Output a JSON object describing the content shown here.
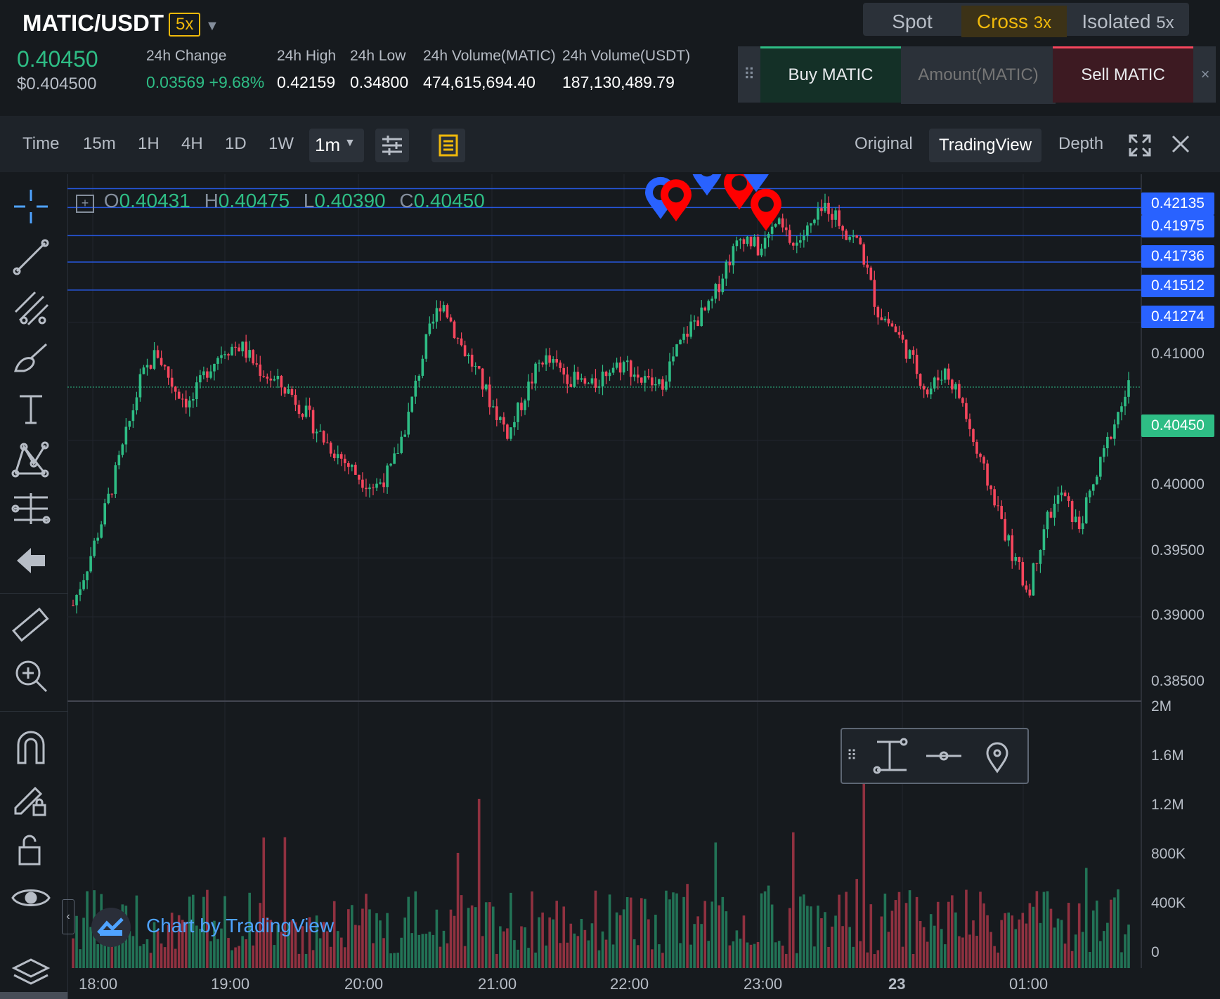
{
  "header": {
    "pair": "MATIC/USDT",
    "leverage": "5x",
    "last_price": "0.40450",
    "last_price_usd": "$0.404500",
    "stats": [
      {
        "label": "24h Change",
        "value": "0.03569 +9.68%",
        "color": "#2ebd85"
      },
      {
        "label": "24h High",
        "value": "0.42159"
      },
      {
        "label": "24h Low",
        "value": "0.34800"
      },
      {
        "label": "24h Volume(MATIC)",
        "value": "474,615,694.40"
      },
      {
        "label": "24h Volume(USDT)",
        "value": "187,130,489.79"
      }
    ]
  },
  "margin_tabs": {
    "spot": "Spot",
    "cross": "Cross",
    "cross_lev": "3x",
    "isolated": "Isolated",
    "isolated_lev": "5x"
  },
  "trade_panel": {
    "buy": "Buy MATIC",
    "amount_placeholder": "Amount(MATIC)",
    "sell": "Sell MATIC",
    "close": "×"
  },
  "toolbar": {
    "intervals": [
      "Time",
      "15m",
      "1H",
      "4H",
      "1D",
      "1W"
    ],
    "selected_interval": "1m",
    "views": [
      "Original",
      "TradingView",
      "Depth"
    ],
    "active_view": "TradingView"
  },
  "ohlc": {
    "o_label": "O",
    "o": "0.40431",
    "h_label": "H",
    "h": "0.40475",
    "l_label": "L",
    "l": "0.40390",
    "c_label": "C",
    "c": "0.40450"
  },
  "chart_data": {
    "type": "candlestick",
    "x_labels": [
      "18:00",
      "19:00",
      "20:00",
      "21:00",
      "22:00",
      "23:00",
      "23",
      "01:00"
    ],
    "price_ticks": [
      "0.41000",
      "0.40000",
      "0.39500",
      "0.39000",
      "0.38500"
    ],
    "volume_ticks": [
      "2M",
      "1.6M",
      "1.2M",
      "800K",
      "400K",
      "0"
    ],
    "level_lines": [
      "0.42135",
      "0.41975",
      "0.41736",
      "0.41512",
      "0.41274"
    ],
    "current_price": "0.40450",
    "ylim": [
      0.385,
      0.4215
    ],
    "price_path": [
      0.386,
      0.39,
      0.3945,
      0.3995,
      0.405,
      0.4075,
      0.4045,
      0.403,
      0.406,
      0.4078,
      0.408,
      0.4062,
      0.405,
      0.404,
      0.402,
      0.4,
      0.3985,
      0.397,
      0.396,
      0.3975,
      0.402,
      0.408,
      0.412,
      0.4085,
      0.406,
      0.403,
      0.4005,
      0.404,
      0.407,
      0.406,
      0.405,
      0.4045,
      0.4062,
      0.4065,
      0.405,
      0.4045,
      0.4075,
      0.41,
      0.4112,
      0.415,
      0.4175,
      0.416,
      0.4185,
      0.4165,
      0.418,
      0.42,
      0.418,
      0.4165,
      0.411,
      0.4095,
      0.407,
      0.404,
      0.406,
      0.4035,
      0.3985,
      0.395,
      0.3905,
      0.387,
      0.393,
      0.3955,
      0.3925,
      0.3965,
      0.401,
      0.4045
    ],
    "markers": [
      {
        "price": 0.419,
        "color": "#2962ff"
      },
      {
        "price": 0.4188,
        "color": "#ff0000"
      },
      {
        "price": 0.421,
        "color": "#2962ff"
      },
      {
        "price": 0.4198,
        "color": "#ff0000"
      },
      {
        "price": 0.4213,
        "color": "#2962ff"
      },
      {
        "price": 0.418,
        "color": "#ff0000"
      }
    ]
  },
  "watermark": "Chart by TradingView",
  "colors": {
    "up": "#2ebd85",
    "down": "#f6465d",
    "accent": "#f0b90b",
    "level": "#2962ff"
  }
}
